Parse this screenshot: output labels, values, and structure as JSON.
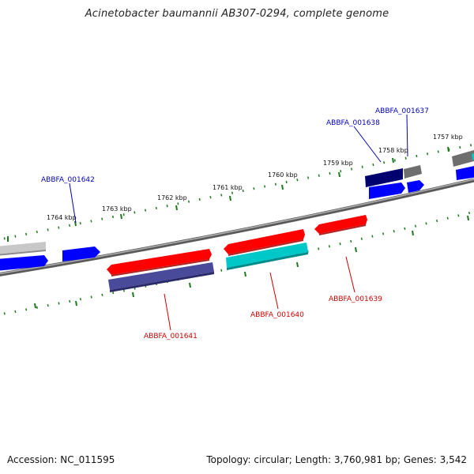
{
  "title": "Acinetobacter baumannii AB307-0294, complete genome",
  "footer": {
    "accession": "Accession: NC_011595",
    "topology": "Topology: circular; Length: 3,760,981 bp; Genes: 3,542"
  },
  "colors": {
    "forward_cds": "#0000ff",
    "reverse_cds": "#ff0000",
    "slate_feature": "#4a4a9a",
    "navy_feature": "#00006e",
    "cyan_feature": "#00c8c8",
    "grey_feature": "#6e6e6e",
    "light_grey_feature": "#b4b4b4",
    "backbone": "#808080",
    "tick_green": "#1e7a1e",
    "forward_label": "#0000bb",
    "reverse_label": "#cc0000"
  },
  "scale_labels": [
    {
      "text": "1764 kbp"
    },
    {
      "text": "1763 kbp"
    },
    {
      "text": "1762 kbp"
    },
    {
      "text": "1761 kbp"
    },
    {
      "text": "1760 kbp"
    },
    {
      "text": "1759 kbp"
    },
    {
      "text": "1758 kbp"
    },
    {
      "text": "1757 kbp"
    }
  ],
  "gene_labels": [
    {
      "text": "ABBFA_001642",
      "strand": "forward"
    },
    {
      "text": "ABBFA_001638",
      "strand": "forward"
    },
    {
      "text": "ABBFA_001637",
      "strand": "forward"
    },
    {
      "text": "ABBFA_001641",
      "strand": "reverse"
    },
    {
      "text": "ABBFA_001640",
      "strand": "reverse"
    },
    {
      "text": "ABBFA_001639",
      "strand": "reverse"
    }
  ]
}
